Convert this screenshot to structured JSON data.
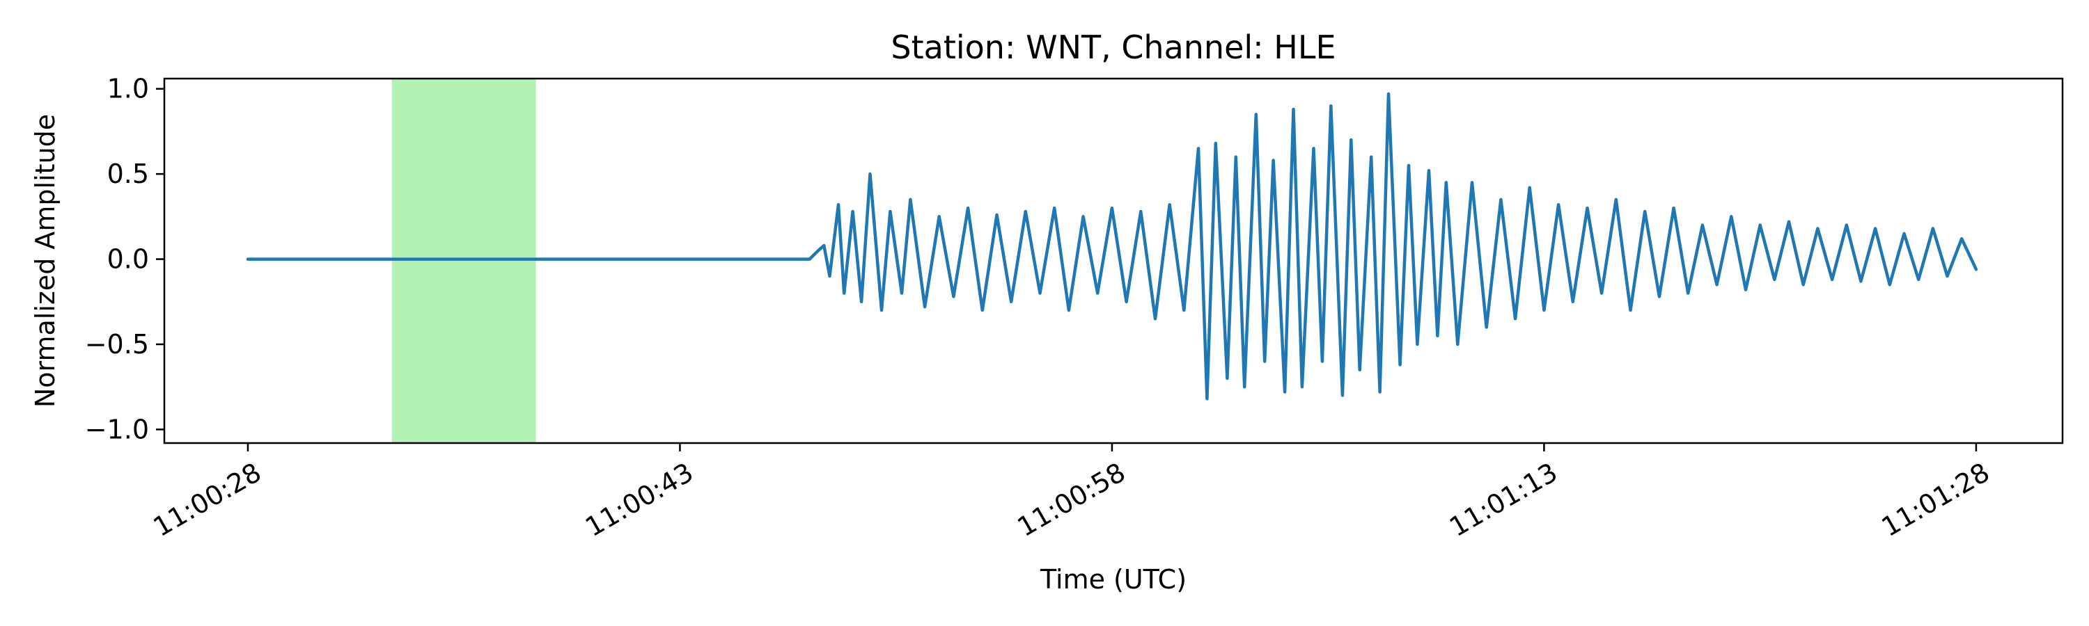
{
  "chart_data": {
    "type": "line",
    "title": "Station: WNT, Channel: HLE",
    "xlabel": "Time (UTC)",
    "ylabel": "Normalized Amplitude",
    "xlim": [
      "11:00:25.1",
      "11:01:31.0"
    ],
    "ylim": [
      -1.08,
      1.06
    ],
    "x_ticks": [
      "11:00:28",
      "11:00:43",
      "11:00:58",
      "11:01:13",
      "11:01:28"
    ],
    "y_ticks": [
      "1.0",
      "0.5",
      "0.0",
      "−0.5",
      "−1.0"
    ],
    "grid": false,
    "highlight_window": {
      "start": "11:00:33",
      "end": "11:00:38",
      "color": "#b2f2b2"
    },
    "series": [
      {
        "color": "#1f77b4",
        "x_unit": "seconds after 11:00:28",
        "x": [
          0,
          19.5,
          19.8,
          20.0,
          20.2,
          20.5,
          20.7,
          21.0,
          21.3,
          21.6,
          22.0,
          22.3,
          22.7,
          23.0,
          23.5,
          24.0,
          24.5,
          25.0,
          25.5,
          26.0,
          26.5,
          27.0,
          27.5,
          28.0,
          28.5,
          29.0,
          29.5,
          30.0,
          30.5,
          31.0,
          31.5,
          32.0,
          32.5,
          33.0,
          33.3,
          33.6,
          34.0,
          34.3,
          34.6,
          35.0,
          35.3,
          35.6,
          36.0,
          36.3,
          36.6,
          37.0,
          37.3,
          37.6,
          38.0,
          38.3,
          38.6,
          39.0,
          39.3,
          39.6,
          40.0,
          40.3,
          40.6,
          41.0,
          41.3,
          41.6,
          42.0,
          42.5,
          43.0,
          43.5,
          44.0,
          44.5,
          45.0,
          45.5,
          46.0,
          46.5,
          47.0,
          47.5,
          48.0,
          48.5,
          49.0,
          49.5,
          50.0,
          50.5,
          51.0,
          51.5,
          52.0,
          52.5,
          53.0,
          53.5,
          54.0,
          54.5,
          55.0,
          55.5,
          56.0,
          56.5,
          57.0,
          57.5,
          58.0,
          58.5,
          59.0,
          59.5,
          60.0
        ],
        "y": [
          0.0,
          0.0,
          0.05,
          0.08,
          -0.1,
          0.32,
          -0.2,
          0.28,
          -0.25,
          0.5,
          -0.3,
          0.28,
          -0.2,
          0.35,
          -0.28,
          0.25,
          -0.22,
          0.3,
          -0.3,
          0.26,
          -0.25,
          0.28,
          -0.2,
          0.3,
          -0.3,
          0.25,
          -0.2,
          0.3,
          -0.25,
          0.28,
          -0.35,
          0.32,
          -0.3,
          0.65,
          -0.82,
          0.68,
          -0.7,
          0.6,
          -0.75,
          0.85,
          -0.6,
          0.58,
          -0.78,
          0.88,
          -0.75,
          0.65,
          -0.6,
          0.9,
          -0.8,
          0.7,
          -0.65,
          0.6,
          -0.78,
          0.97,
          -0.62,
          0.55,
          -0.5,
          0.52,
          -0.45,
          0.45,
          -0.5,
          0.45,
          -0.4,
          0.35,
          -0.35,
          0.42,
          -0.3,
          0.32,
          -0.25,
          0.3,
          -0.2,
          0.35,
          -0.3,
          0.28,
          -0.22,
          0.3,
          -0.2,
          0.2,
          -0.15,
          0.25,
          -0.18,
          0.2,
          -0.12,
          0.22,
          -0.15,
          0.18,
          -0.12,
          0.2,
          -0.13,
          0.18,
          -0.15,
          0.15,
          -0.12,
          0.18,
          -0.1,
          0.12,
          -0.06
        ]
      }
    ]
  }
}
